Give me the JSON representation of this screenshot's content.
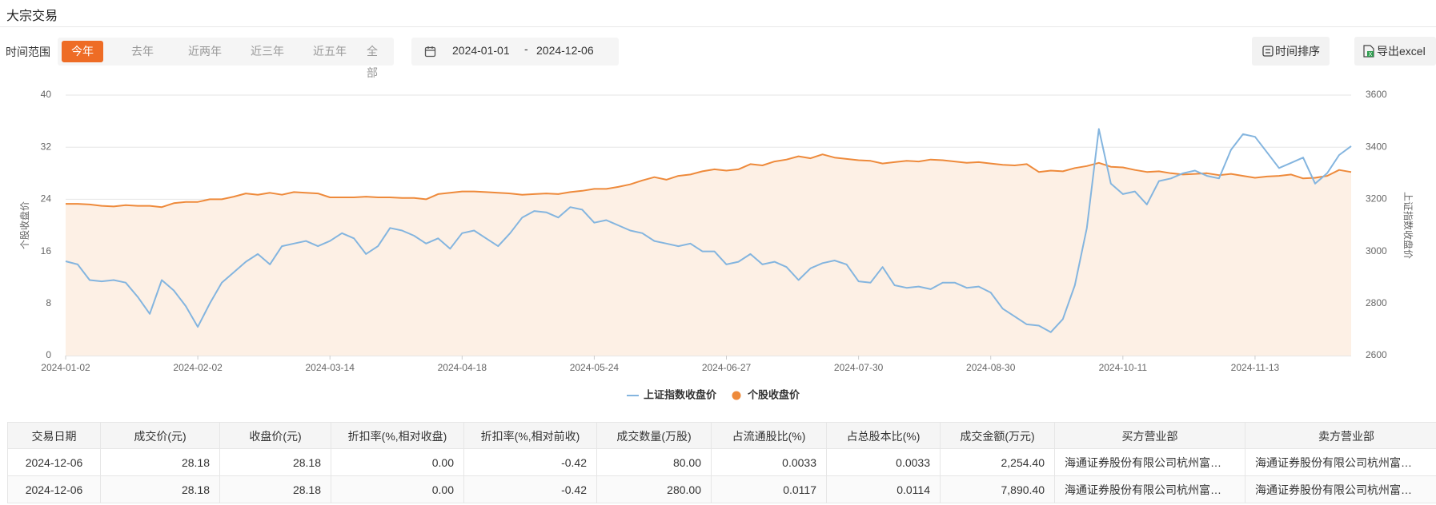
{
  "header": {
    "title": "大宗交易"
  },
  "filters": {
    "label": "时间范围",
    "options": [
      "今年",
      "去年",
      "近两年",
      "近三年",
      "近五年",
      "全部"
    ],
    "active": 0,
    "date_range": {
      "start": "2024-01-01",
      "separator": "-",
      "end": "2024-12-06"
    }
  },
  "actions": [
    "时间排序",
    "导出excel"
  ],
  "chart_data": {
    "type": "line",
    "categories": [
      "2024-01-02",
      null,
      null,
      null,
      null,
      null,
      null,
      null,
      null,
      null,
      null,
      "2024-02-02",
      null,
      null,
      null,
      null,
      null,
      null,
      null,
      null,
      null,
      null,
      "2024-03-14",
      null,
      null,
      null,
      null,
      null,
      null,
      null,
      null,
      null,
      null,
      "2024-04-18",
      null,
      null,
      null,
      null,
      null,
      null,
      null,
      null,
      null,
      null,
      "2024-05-24",
      null,
      null,
      null,
      null,
      null,
      null,
      null,
      null,
      null,
      null,
      "2024-06-27",
      null,
      null,
      null,
      null,
      null,
      null,
      null,
      null,
      null,
      null,
      "2024-07-30",
      null,
      null,
      null,
      null,
      null,
      null,
      null,
      null,
      null,
      null,
      "2024-08-30",
      null,
      null,
      null,
      null,
      null,
      null,
      null,
      null,
      null,
      null,
      "2024-10-11",
      null,
      null,
      null,
      null,
      null,
      null,
      null,
      null,
      null,
      null,
      "2024-11-13",
      null,
      null,
      null,
      null,
      null,
      null,
      null,
      null
    ],
    "series": [
      {
        "name": "上证指数收盘价",
        "color": "#84b5df",
        "axis": "y2",
        "marker": "line",
        "values": [
          2962,
          2950,
          2890,
          2885,
          2890,
          2880,
          2825,
          2760,
          2890,
          2850,
          2790,
          2710,
          2800,
          2880,
          2920,
          2960,
          2990,
          2950,
          3020,
          3030,
          3040,
          3020,
          3040,
          3070,
          3050,
          2990,
          3020,
          3090,
          3080,
          3060,
          3030,
          3050,
          3010,
          3070,
          3080,
          3050,
          3020,
          3070,
          3130,
          3155,
          3150,
          3130,
          3170,
          3160,
          3110,
          3120,
          3100,
          3080,
          3070,
          3040,
          3030,
          3020,
          3030,
          3000,
          3000,
          2950,
          2960,
          2990,
          2950,
          2960,
          2940,
          2890,
          2935,
          2955,
          2965,
          2950,
          2885,
          2880,
          2940,
          2870,
          2860,
          2865,
          2855,
          2880,
          2880,
          2860,
          2865,
          2842,
          2780,
          2750,
          2720,
          2715,
          2690,
          2740,
          2870,
          3090,
          3470,
          3260,
          3220,
          3230,
          3180,
          3270,
          3280,
          3300,
          3310,
          3290,
          3280,
          3390,
          3450,
          3440,
          3380,
          3320,
          3340,
          3360,
          3260,
          3300,
          3370,
          3404
        ]
      },
      {
        "name": "个股收盘价",
        "color": "#ee8a3b",
        "fill": "#fdf0e5",
        "marker": "circle",
        "values": [
          23.3,
          23.3,
          23.2,
          23.0,
          22.9,
          23.1,
          23.0,
          23.0,
          22.8,
          23.4,
          23.6,
          23.6,
          24.0,
          24.0,
          24.4,
          24.9,
          24.7,
          25.0,
          24.7,
          25.1,
          25.0,
          24.9,
          24.3,
          24.3,
          24.3,
          24.4,
          24.3,
          24.3,
          24.2,
          24.2,
          24.0,
          24.8,
          25.0,
          25.2,
          25.2,
          25.1,
          25.0,
          24.9,
          24.7,
          24.8,
          24.9,
          24.8,
          25.1,
          25.3,
          25.6,
          25.6,
          25.9,
          26.3,
          26.9,
          27.4,
          27.0,
          27.6,
          27.8,
          28.3,
          28.6,
          28.4,
          28.6,
          29.4,
          29.2,
          29.8,
          30.1,
          30.6,
          30.3,
          30.9,
          30.4,
          30.2,
          30.0,
          29.9,
          29.5,
          29.7,
          29.9,
          29.8,
          30.1,
          30.0,
          29.8,
          29.6,
          29.7,
          29.5,
          29.3,
          29.2,
          29.4,
          28.2,
          28.4,
          28.3,
          28.8,
          29.1,
          29.6,
          29.0,
          28.9,
          28.5,
          28.2,
          28.3,
          28.0,
          27.8,
          27.9,
          28.0,
          27.7,
          27.9,
          27.6,
          27.3,
          27.5,
          27.6,
          27.8,
          27.2,
          27.3,
          27.6,
          28.5,
          28.18
        ]
      }
    ],
    "ylabel": "个股收盘价",
    "y2label": "上证指数收盘价",
    "ylim": [
      0,
      40
    ],
    "yticks": [
      0,
      8,
      16,
      24,
      32,
      40
    ],
    "y2lim": [
      2600,
      3600
    ],
    "y2ticks": [
      2600,
      2800,
      3000,
      3200,
      3400,
      3600
    ],
    "grid": true,
    "legend": "bottom"
  },
  "table": {
    "columns": [
      "交易日期",
      "成交价(元)",
      "收盘价(元)",
      "折扣率(%,相对收盘)",
      "折扣率(%,相对前收)",
      "成交数量(万股)",
      "占流通股比(%)",
      "占总股本比(%)",
      "成交金额(万元)",
      "买方营业部",
      "卖方营业部"
    ],
    "rows": [
      [
        "2024-12-06",
        "28.18",
        "28.18",
        "0.00",
        "-0.42",
        "80.00",
        "0.0033",
        "0.0033",
        "2,254.40",
        "海通证券股份有限公司杭州富…",
        "海通证券股份有限公司杭州富…"
      ],
      [
        "2024-12-06",
        "28.18",
        "28.18",
        "0.00",
        "-0.42",
        "280.00",
        "0.0117",
        "0.0114",
        "7,890.40",
        "海通证券股份有限公司杭州富…",
        "海通证券股份有限公司杭州富…"
      ]
    ]
  }
}
